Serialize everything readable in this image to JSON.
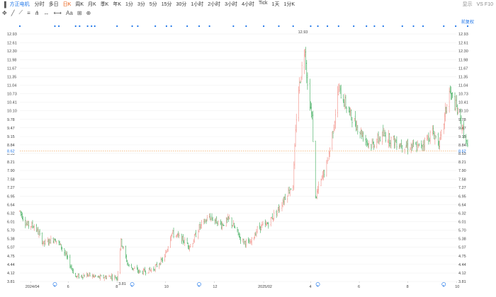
{
  "toolbar": {
    "stock_name": "方正电机",
    "periods": [
      "分时",
      "多日",
      "日K",
      "周K",
      "月K",
      "季K",
      "年K",
      "1分",
      "3分",
      "5分",
      "15分",
      "30分",
      "1小时",
      "2小时",
      "3小时",
      "4小时",
      "Tick",
      "1天",
      "1分K"
    ],
    "active_period": "日K",
    "right_label": "显示",
    "right_tail": "VS F10"
  },
  "chart_data": {
    "type": "ohlc",
    "current_price": 8.62,
    "current_price_label": "8.62",
    "max_label": "12.93",
    "min_label": "3.81",
    "yticks": [
      3.81,
      4.12,
      4.44,
      4.75,
      5.07,
      5.38,
      5.7,
      6.01,
      6.32,
      6.64,
      6.95,
      7.27,
      7.58,
      7.9,
      8.21,
      8.53,
      8.84,
      9.15,
      9.47,
      9.78,
      10.1,
      10.41,
      10.73,
      11.04,
      11.35,
      11.67,
      11.98,
      12.3,
      12.61,
      12.93
    ],
    "ylim": [
      3.81,
      12.93
    ],
    "xticks": [
      "2024/04",
      "6",
      "8",
      "10",
      "12",
      "2025/02",
      "4",
      "6",
      "8",
      "10"
    ],
    "start": "2024-04-01",
    "end": "2025-10-15",
    "anchors": [
      [
        "2024-04-01",
        6.4
      ],
      [
        "2024-04-10",
        5.9
      ],
      [
        "2024-04-20",
        5.85
      ],
      [
        "2024-05-01",
        5.2
      ],
      [
        "2024-05-15",
        5.4
      ],
      [
        "2024-05-25",
        5.0
      ],
      [
        "2024-06-05",
        4.3
      ],
      [
        "2024-06-10",
        3.98
      ],
      [
        "2024-06-25",
        4.05
      ],
      [
        "2024-07-10",
        3.95
      ],
      [
        "2024-07-25",
        4.0
      ],
      [
        "2024-08-01",
        3.95
      ],
      [
        "2024-08-06",
        5.3
      ],
      [
        "2024-08-15",
        4.4
      ],
      [
        "2024-08-30",
        4.15
      ],
      [
        "2024-09-15",
        4.25
      ],
      [
        "2024-09-30",
        4.7
      ],
      [
        "2024-10-08",
        5.6
      ],
      [
        "2024-10-20",
        5.4
      ],
      [
        "2024-11-01",
        5.1
      ],
      [
        "2024-11-12",
        5.8
      ],
      [
        "2024-11-25",
        6.2
      ],
      [
        "2024-12-10",
        5.9
      ],
      [
        "2024-12-20",
        6.1
      ],
      [
        "2025-01-05",
        5.3
      ],
      [
        "2025-01-15",
        5.2
      ],
      [
        "2025-01-25",
        5.8
      ],
      [
        "2025-02-05",
        5.9
      ],
      [
        "2025-02-20",
        6.5
      ],
      [
        "2025-03-01",
        7.0
      ],
      [
        "2025-03-10",
        7.4
      ],
      [
        "2025-03-15",
        10.5
      ],
      [
        "2025-03-25",
        12.5
      ],
      [
        "2025-03-28",
        11.0
      ],
      [
        "2025-04-03",
        9.8
      ],
      [
        "2025-04-07",
        6.9
      ],
      [
        "2025-04-15",
        7.6
      ],
      [
        "2025-04-22",
        8.2
      ],
      [
        "2025-04-30",
        9.6
      ],
      [
        "2025-05-06",
        10.9
      ],
      [
        "2025-05-20",
        10.0
      ],
      [
        "2025-06-01",
        9.4
      ],
      [
        "2025-06-15",
        8.8
      ],
      [
        "2025-07-01",
        9.2
      ],
      [
        "2025-07-20",
        8.9
      ],
      [
        "2025-08-01",
        8.8
      ],
      [
        "2025-08-15",
        8.75
      ],
      [
        "2025-09-01",
        9.3
      ],
      [
        "2025-09-10",
        8.9
      ],
      [
        "2025-09-22",
        10.8
      ],
      [
        "2025-10-01",
        10.2
      ],
      [
        "2025-10-10",
        9.3
      ],
      [
        "2025-10-15",
        8.7
      ]
    ],
    "dot_dates": [
      "2024-04-01",
      "2024-05-15",
      "2024-05-20",
      "2024-06-10",
      "2024-06-15",
      "2024-06-25",
      "2024-06-30",
      "2024-07-04",
      "2024-08-01",
      "2024-08-20",
      "2024-08-27",
      "2024-09-18",
      "2024-10-02",
      "2024-10-08",
      "2024-10-28",
      "2024-11-12",
      "2024-11-25",
      "2024-12-25",
      "2025-01-10",
      "2025-02-01",
      "2025-02-20",
      "2025-03-10",
      "2025-04-01",
      "2025-04-10",
      "2025-04-22",
      "2025-05-06",
      "2025-05-25",
      "2025-06-10",
      "2025-06-20",
      "2025-07-01",
      "2025-07-25",
      "2025-08-08",
      "2025-08-20",
      "2025-09-15",
      "2025-09-30",
      "2025-10-15"
    ],
    "marker_dates": [
      "2024-05-15",
      "2024-08-20",
      "2024-11-12",
      "2025-04-10",
      "2025-09-15"
    ]
  },
  "right_label": "前复权",
  "colors": {
    "up": "#f28b82",
    "down": "#34a853",
    "price_line": "#f0a050",
    "dot": "#1a73e8",
    "grid": "#eeeeee"
  }
}
